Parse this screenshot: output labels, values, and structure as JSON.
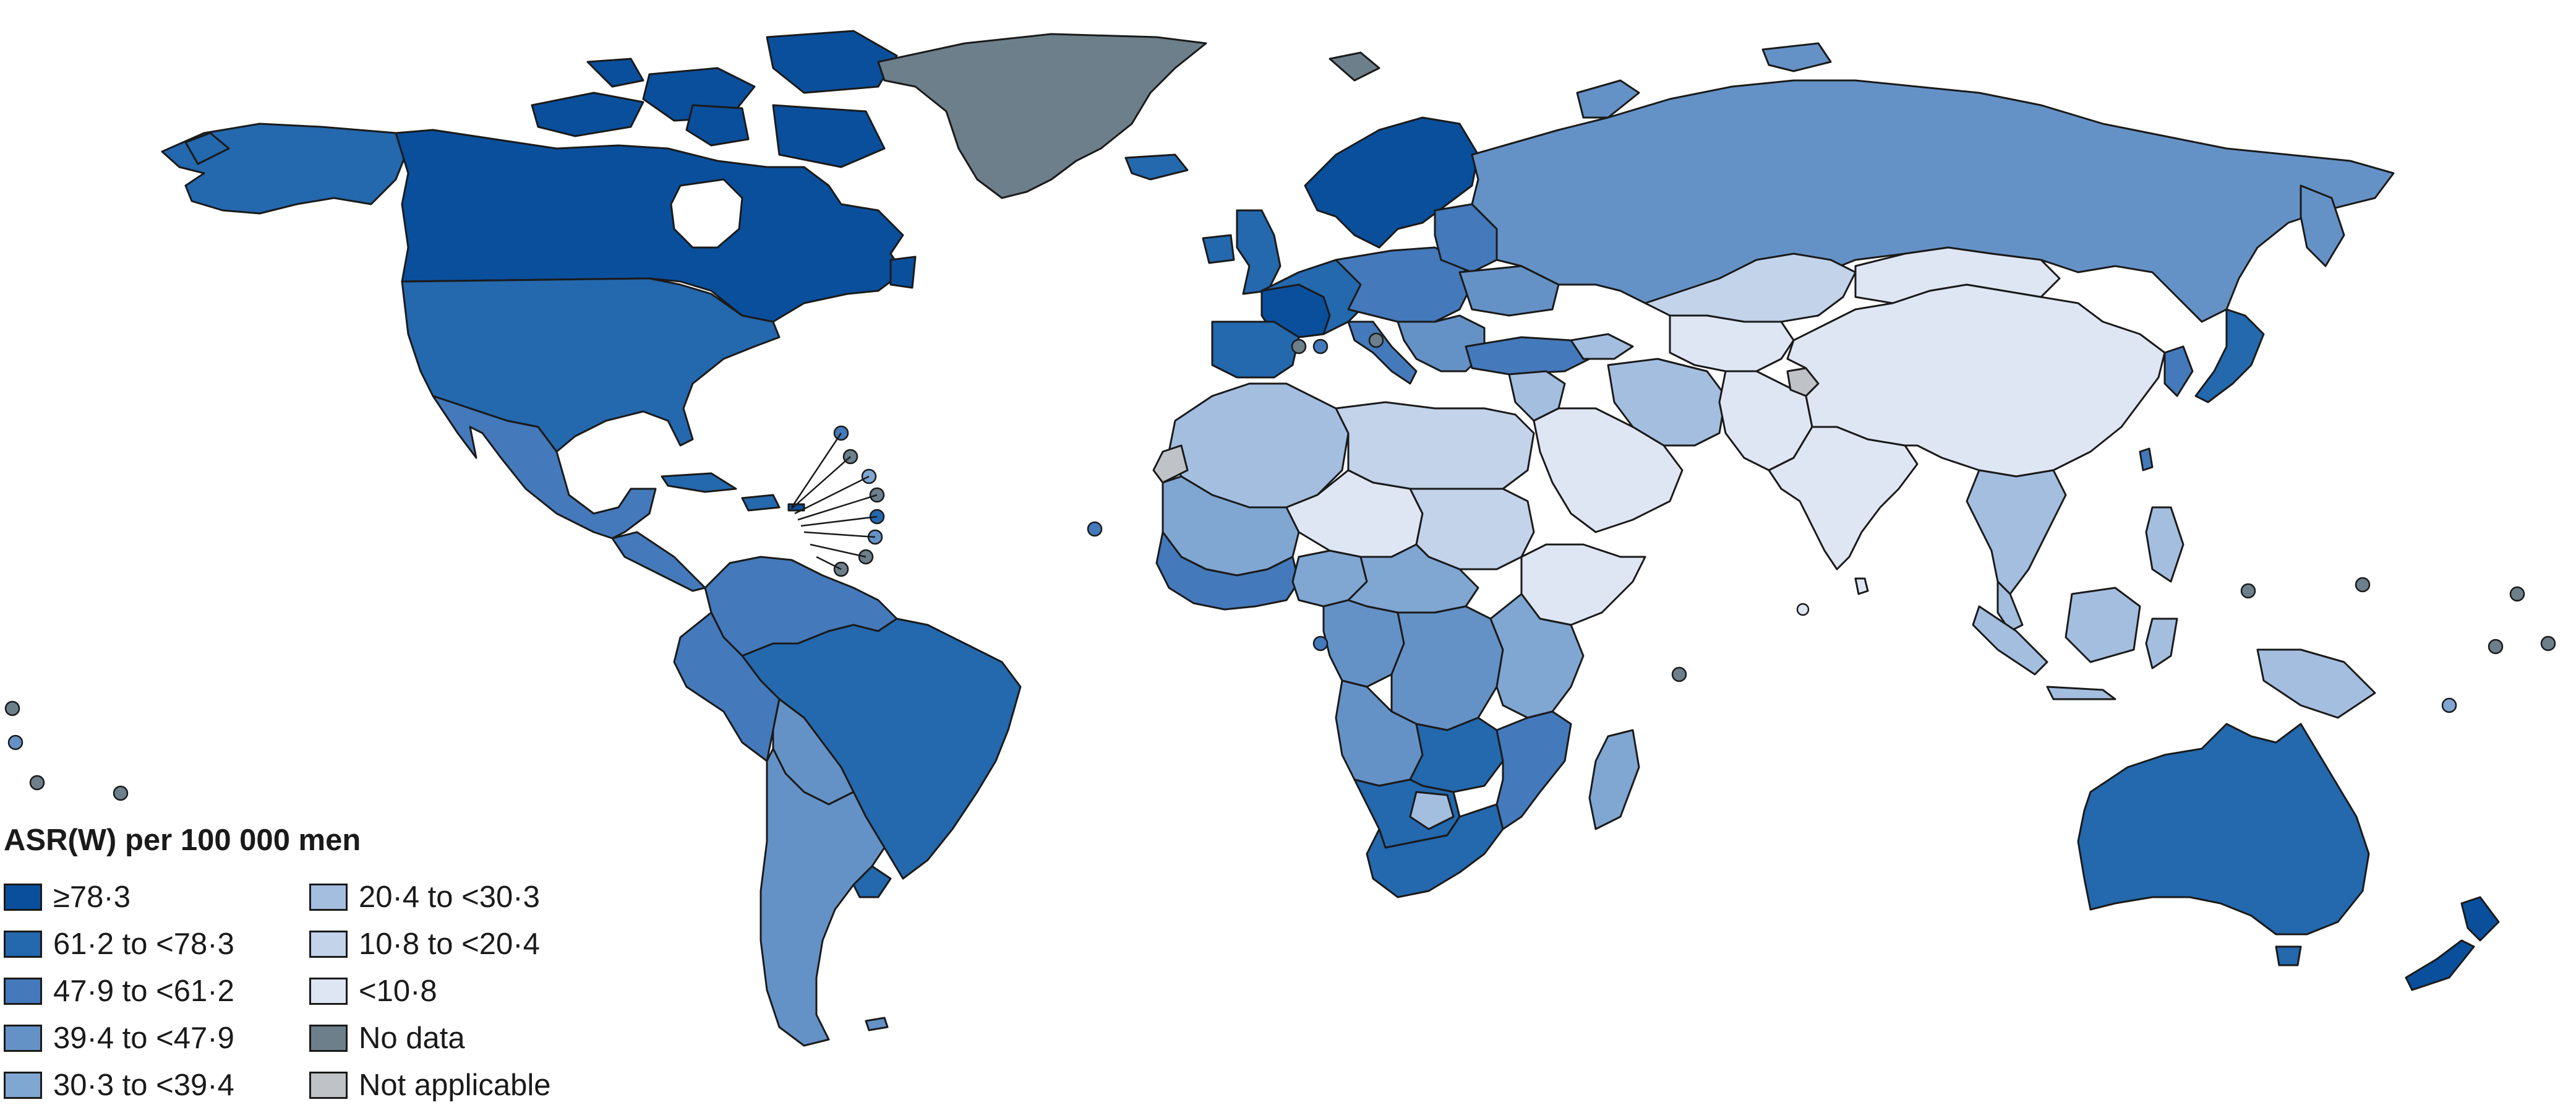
{
  "map": {
    "projection": "world choropleth",
    "ocean_color": "#ffffff",
    "border_color": "#1a1a1a"
  },
  "legend": {
    "title": "ASR(W) per 100 000 men",
    "items": [
      {
        "label": "≥78·3",
        "color": "#0a4f9c"
      },
      {
        "label": "61·2 to <78·3",
        "color": "#2468ad"
      },
      {
        "label": "47·9 to <61·2",
        "color": "#4479bb"
      },
      {
        "label": "39·4 to <47·9",
        "color": "#6592c6"
      },
      {
        "label": "30·3 to <39·4",
        "color": "#80a6d2"
      },
      {
        "label": "20·4 to <30·3",
        "color": "#a4bee0"
      },
      {
        "label": "10·8 to <20·4",
        "color": "#c2d3ea"
      },
      {
        "label": "<10·8",
        "color": "#dfe6f3"
      },
      {
        "label": "No data",
        "color": "#6c7f8b"
      },
      {
        "label": "Not applicable",
        "color": "#bfc3c7"
      }
    ]
  }
}
